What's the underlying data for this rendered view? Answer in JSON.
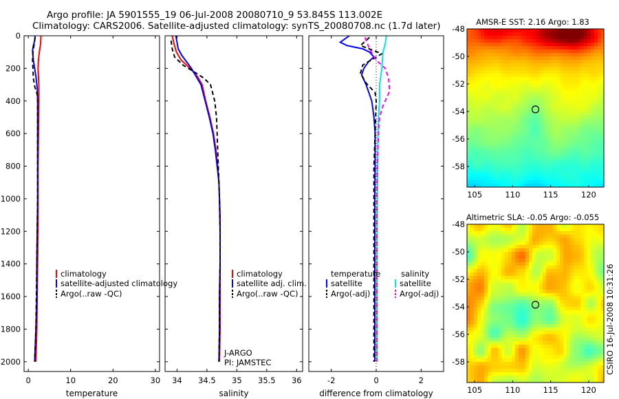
{
  "figure": {
    "title_line1": "Argo profile: JA 5901555_19 06-Jul-2008 20080710_9 53.845S 113.002E",
    "title_line2": "Climatology: CARS2006. Satellite-adjusted climatology: synTS_20080708.nc (1.7d later)",
    "side_label": "CSIRO 16-Jul-2008 10:31:26"
  },
  "colors": {
    "climatology": "#ff0000",
    "satellite": "#0000ff",
    "argo": "#000000",
    "sal_satellite": "#00e5e5",
    "sal_argo": "#ff00ff"
  },
  "chart_data": [
    {
      "id": "temperature",
      "type": "line",
      "xlabel": "temperature",
      "ylabel": "",
      "xlim": [
        -1,
        31
      ],
      "ylim": [
        2060,
        0
      ],
      "xticks": [
        0,
        10,
        20,
        30
      ],
      "yticks": [
        0,
        200,
        400,
        600,
        800,
        1000,
        1200,
        1400,
        1600,
        1800,
        2000
      ],
      "legend": [
        "climatology",
        "satellite-adjusted climatology",
        "Argo(..raw -QC)"
      ],
      "series": [
        {
          "name": "climatology",
          "color": "#ff0000",
          "dash": "",
          "points": [
            [
              3.0,
              0
            ],
            [
              2.9,
              50
            ],
            [
              2.6,
              100
            ],
            [
              2.4,
              150
            ],
            [
              2.3,
              200
            ],
            [
              2.4,
              250
            ],
            [
              2.5,
              300
            ],
            [
              2.5,
              400
            ],
            [
              2.4,
              600
            ],
            [
              2.3,
              800
            ],
            [
              2.3,
              1000
            ],
            [
              2.3,
              1200
            ],
            [
              2.2,
              1400
            ],
            [
              2.1,
              1600
            ],
            [
              2.0,
              1800
            ],
            [
              1.8,
              2000
            ]
          ]
        },
        {
          "name": "satellite-adjusted climatology",
          "color": "#0000ff",
          "dash": "",
          "points": [
            [
              1.6,
              0
            ],
            [
              1.5,
              30
            ],
            [
              1.2,
              60
            ],
            [
              1.0,
              90
            ],
            [
              1.2,
              150
            ],
            [
              1.5,
              200
            ],
            [
              1.8,
              250
            ],
            [
              2.1,
              320
            ],
            [
              2.2,
              400
            ],
            [
              2.2,
              600
            ],
            [
              2.2,
              800
            ],
            [
              2.2,
              1000
            ],
            [
              2.1,
              1200
            ],
            [
              2.0,
              1400
            ],
            [
              2.0,
              1600
            ],
            [
              1.8,
              1800
            ],
            [
              1.5,
              2000
            ]
          ]
        },
        {
          "name": "Argo(..raw -QC)",
          "color": "#000000",
          "dash": "6,4",
          "points": [
            [
              1.6,
              10
            ],
            [
              1.4,
              50
            ],
            [
              1.1,
              100
            ],
            [
              1.0,
              150
            ],
            [
              1.1,
              200
            ],
            [
              1.2,
              260
            ],
            [
              1.5,
              310
            ],
            [
              2.1,
              360
            ],
            [
              2.2,
              400
            ],
            [
              2.2,
              600
            ],
            [
              2.2,
              800
            ],
            [
              2.2,
              1000
            ],
            [
              2.1,
              1200
            ],
            [
              2.0,
              1400
            ],
            [
              1.9,
              1600
            ],
            [
              1.8,
              1800
            ],
            [
              1.5,
              2000
            ]
          ]
        }
      ]
    },
    {
      "id": "salinity",
      "type": "line",
      "xlabel": "salinity",
      "ylabel": "",
      "xlim": [
        33.8,
        36.1
      ],
      "ylim": [
        2060,
        0
      ],
      "xticks": [
        34,
        34.5,
        35,
        35.5,
        36
      ],
      "xticklabels": [
        "34",
        "34.5",
        "35",
        "35.5",
        "36"
      ],
      "legend": [
        "climatology",
        "satellite adj. clim.",
        "Argo(..raw -QC)"
      ],
      "annotation": [
        "J-ARGO",
        "PI: JAMSTEC"
      ],
      "series": [
        {
          "name": "climatology",
          "color": "#ff0000",
          "dash": "",
          "points": [
            [
              33.92,
              0
            ],
            [
              33.95,
              50
            ],
            [
              33.99,
              100
            ],
            [
              34.07,
              150
            ],
            [
              34.22,
              200
            ],
            [
              34.34,
              250
            ],
            [
              34.42,
              300
            ],
            [
              34.48,
              400
            ],
            [
              34.55,
              500
            ],
            [
              34.61,
              600
            ],
            [
              34.65,
              700
            ],
            [
              34.68,
              800
            ],
            [
              34.7,
              900
            ],
            [
              34.71,
              1000
            ],
            [
              34.72,
              1100
            ],
            [
              34.72,
              1400
            ],
            [
              34.72,
              1600
            ],
            [
              34.72,
              1800
            ],
            [
              34.71,
              2000
            ]
          ]
        },
        {
          "name": "satellite adj. clim.",
          "color": "#0000ff",
          "dash": "",
          "points": [
            [
              33.98,
              0
            ],
            [
              34.0,
              40
            ],
            [
              34.02,
              80
            ],
            [
              34.08,
              120
            ],
            [
              34.16,
              160
            ],
            [
              34.24,
              200
            ],
            [
              34.32,
              250
            ],
            [
              34.4,
              300
            ],
            [
              34.47,
              400
            ],
            [
              34.54,
              500
            ],
            [
              34.6,
              600
            ],
            [
              34.64,
              700
            ],
            [
              34.67,
              800
            ],
            [
              34.7,
              900
            ],
            [
              34.71,
              1000
            ],
            [
              34.72,
              1200
            ],
            [
              34.72,
              1400
            ],
            [
              34.71,
              1600
            ],
            [
              34.71,
              1800
            ],
            [
              34.7,
              2000
            ]
          ]
        },
        {
          "name": "Argo(..raw -QC)",
          "color": "#000000",
          "dash": "6,4",
          "points": [
            [
              33.9,
              30
            ],
            [
              33.92,
              80
            ],
            [
              33.96,
              130
            ],
            [
              34.1,
              180
            ],
            [
              34.28,
              220
            ],
            [
              34.45,
              260
            ],
            [
              34.56,
              300
            ],
            [
              34.63,
              400
            ],
            [
              34.66,
              500
            ],
            [
              34.67,
              600
            ],
            [
              34.68,
              700
            ],
            [
              34.69,
              800
            ],
            [
              34.7,
              900
            ],
            [
              34.71,
              1000
            ],
            [
              34.72,
              1200
            ],
            [
              34.72,
              1400
            ],
            [
              34.71,
              1600
            ],
            [
              34.71,
              1800
            ],
            [
              34.7,
              2000
            ]
          ]
        }
      ]
    },
    {
      "id": "difference",
      "type": "line",
      "xlabel": "difference from climatology",
      "ylabel": "",
      "xlim": [
        -3.0,
        3.0
      ],
      "ylim": [
        2060,
        0
      ],
      "xticks": [
        -2,
        0,
        2
      ],
      "legend_temperature_title": "temperature",
      "legend_salinity_title": "salinity",
      "legend": [
        "satellite",
        "Argo(-adj)",
        "satellite",
        "Argo(-adj)"
      ],
      "series": [
        {
          "name": "temperature satellite",
          "color": "#0000ff",
          "dash": "",
          "points": [
            [
              -1.2,
              0
            ],
            [
              -1.6,
              40
            ],
            [
              -1.3,
              60
            ],
            [
              -0.6,
              80
            ],
            [
              -0.3,
              100
            ],
            [
              -0.1,
              130
            ],
            [
              -0.35,
              160
            ],
            [
              -0.55,
              200
            ],
            [
              -0.65,
              240
            ],
            [
              -0.45,
              300
            ],
            [
              -0.2,
              400
            ],
            [
              -0.1,
              500
            ],
            [
              -0.05,
              600
            ],
            [
              -0.05,
              800
            ],
            [
              -0.06,
              1000
            ],
            [
              -0.06,
              1200
            ],
            [
              -0.06,
              1600
            ],
            [
              -0.06,
              2000
            ]
          ]
        },
        {
          "name": "temperature Argo(-adj)",
          "color": "#000000",
          "dash": "6,4",
          "points": [
            [
              -0.3,
              10
            ],
            [
              -0.7,
              60
            ],
            [
              0.25,
              110
            ],
            [
              -0.6,
              180
            ],
            [
              -0.7,
              230
            ],
            [
              -0.45,
              290
            ],
            [
              -0.05,
              350
            ],
            [
              0.0,
              400
            ],
            [
              -0.05,
              600
            ],
            [
              -0.1,
              800
            ],
            [
              -0.1,
              1000
            ],
            [
              -0.1,
              1200
            ],
            [
              -0.1,
              1600
            ],
            [
              -0.1,
              2000
            ]
          ]
        },
        {
          "name": "salinity satellite",
          "color": "#00e5e5",
          "dash": "",
          "points": [
            [
              0.45,
              0
            ],
            [
              0.4,
              50
            ],
            [
              0.3,
              100
            ],
            [
              0.25,
              200
            ],
            [
              0.15,
              300
            ],
            [
              0.15,
              400
            ],
            [
              0.1,
              500
            ],
            [
              0.08,
              600
            ],
            [
              0.06,
              800
            ],
            [
              0.05,
              1000
            ],
            [
              0.04,
              1200
            ],
            [
              0.03,
              1600
            ],
            [
              0.03,
              2000
            ]
          ]
        },
        {
          "name": "salinity Argo(-adj)",
          "color": "#ff00ff",
          "dash": "6,4",
          "points": [
            [
              -0.5,
              10
            ],
            [
              -0.3,
              80
            ],
            [
              0.0,
              150
            ],
            [
              0.4,
              200
            ],
            [
              0.55,
              260
            ],
            [
              0.6,
              340
            ],
            [
              0.3,
              430
            ],
            [
              0.15,
              500
            ],
            [
              0.1,
              600
            ],
            [
              0.05,
              800
            ],
            [
              0.03,
              1000
            ],
            [
              0.03,
              1200
            ],
            [
              0.03,
              1600
            ],
            [
              0.03,
              2000
            ]
          ]
        }
      ]
    },
    {
      "id": "sst_map",
      "type": "heatmap",
      "title": "AMSR-E SST: 2.16 Argo: 1.83",
      "xlim": [
        104,
        122
      ],
      "ylim": [
        -59.5,
        -48
      ],
      "xticks": [
        105,
        110,
        115,
        120
      ],
      "yticks": [
        -48,
        -50,
        -52,
        -54,
        -56,
        -58
      ],
      "marker": {
        "lon": 113.0,
        "lat": -53.85
      }
    },
    {
      "id": "sla_map",
      "type": "heatmap",
      "title": "Altimetric SLA: -0.05 Argo: -0.055",
      "xlim": [
        104,
        122
      ],
      "ylim": [
        -59.5,
        -48
      ],
      "xticks": [
        105,
        110,
        115,
        120
      ],
      "yticks": [
        -48,
        -50,
        -52,
        -54,
        -56,
        -58
      ],
      "marker": {
        "lon": 113.0,
        "lat": -53.85
      }
    }
  ]
}
